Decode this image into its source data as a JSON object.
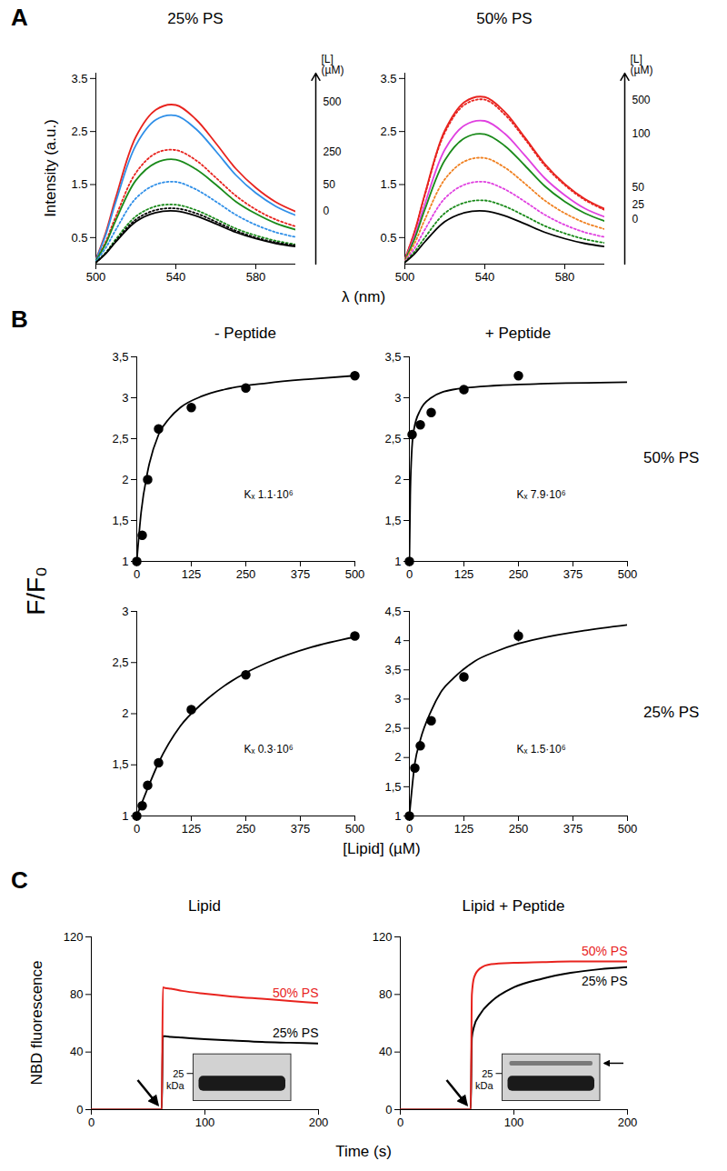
{
  "panels": [
    {
      "label": "A",
      "x_label": "λ (nm)",
      "y_label": "Intensity (a.u.)"
    },
    {
      "label": "B",
      "x_label": "[Lipid] (µM)",
      "y_label": "F/F₀",
      "column_labels": [
        "- Peptide",
        "+ Peptide"
      ],
      "row_labels": [
        "50% PS",
        "25% PS"
      ]
    },
    {
      "label": "C",
      "x_label": "Time (s)",
      "y_label": "NBD fluorescence"
    }
  ],
  "chart_data": [
    {
      "type": "line",
      "panel": "A",
      "title": "25% PS",
      "xlim": [
        500,
        600
      ],
      "xticks": [
        500,
        540,
        580
      ],
      "ylim": [
        0,
        3.6
      ],
      "yticks": [
        0.5,
        1.5,
        2.5,
        3.5
      ],
      "x": [
        500,
        505,
        510,
        520,
        530,
        540,
        550,
        560,
        570,
        580,
        590,
        600
      ],
      "series": [
        {
          "color": "#e8231e",
          "line_style": "solid",
          "values": [
            0.09,
            0.6,
            1.26,
            2.4,
            2.91,
            3.0,
            2.73,
            2.28,
            1.8,
            1.44,
            1.17,
            0.99
          ]
        },
        {
          "color": "#2f8fe8",
          "line_style": "solid",
          "values": [
            0.08,
            0.56,
            1.18,
            2.24,
            2.72,
            2.8,
            2.55,
            2.13,
            1.68,
            1.34,
            1.09,
            0.92
          ]
        },
        {
          "color": "#e8231e",
          "line_style": "dotted",
          "values": [
            0.06,
            0.43,
            0.9,
            1.72,
            2.09,
            2.15,
            1.96,
            1.63,
            1.29,
            1.03,
            0.84,
            0.71
          ]
        },
        {
          "color": "#1a8a1a",
          "line_style": "solid",
          "values": [
            0.06,
            0.39,
            0.83,
            1.58,
            1.91,
            1.97,
            1.79,
            1.5,
            1.18,
            0.95,
            0.77,
            0.65
          ]
        },
        {
          "color": "#2f8fe8",
          "line_style": "dotted",
          "values": [
            0.05,
            0.31,
            0.65,
            1.24,
            1.5,
            1.55,
            1.41,
            1.18,
            0.93,
            0.74,
            0.6,
            0.51
          ]
        },
        {
          "color": "#1a8a1a",
          "line_style": "dotted",
          "values": [
            0.03,
            0.22,
            0.47,
            0.9,
            1.09,
            1.12,
            1.02,
            0.85,
            0.67,
            0.54,
            0.44,
            0.37
          ]
        },
        {
          "color": "#000000",
          "line_style": "dotted",
          "values": [
            0.03,
            0.21,
            0.44,
            0.84,
            1.02,
            1.05,
            0.96,
            0.8,
            0.63,
            0.5,
            0.41,
            0.35
          ]
        },
        {
          "color": "#000000",
          "line_style": "solid",
          "values": [
            0.03,
            0.2,
            0.42,
            0.8,
            0.97,
            1.0,
            0.91,
            0.76,
            0.6,
            0.48,
            0.39,
            0.33
          ]
        }
      ],
      "l_axis": {
        "label": "[L]\n(µM)",
        "ticks": [
          {
            "value": 3.05,
            "label": "500"
          },
          {
            "value": 2.12,
            "label": "250"
          },
          {
            "value": 1.5,
            "label": "50"
          },
          {
            "value": 1.0,
            "label": "0"
          }
        ]
      }
    },
    {
      "type": "line",
      "panel": "A",
      "title": "50% PS",
      "xlim": [
        500,
        600
      ],
      "xticks": [
        500,
        540,
        580
      ],
      "ylim": [
        0,
        3.6
      ],
      "yticks": [
        0.5,
        1.5,
        2.5,
        3.5
      ],
      "x": [
        500,
        505,
        510,
        520,
        530,
        540,
        550,
        560,
        570,
        580,
        590,
        600
      ],
      "series": [
        {
          "color": "#e8231e",
          "line_style": "solid",
          "values": [
            0.09,
            0.63,
            1.32,
            2.52,
            3.06,
            3.15,
            2.87,
            2.39,
            1.89,
            1.51,
            1.23,
            1.04
          ]
        },
        {
          "color": "#e8231e",
          "line_style": "dotted",
          "values": [
            0.09,
            0.62,
            1.3,
            2.48,
            3.01,
            3.1,
            2.82,
            2.36,
            1.86,
            1.49,
            1.21,
            1.02
          ]
        },
        {
          "color": "#e040e0",
          "line_style": "solid",
          "values": [
            0.08,
            0.54,
            1.13,
            2.16,
            2.62,
            2.7,
            2.46,
            2.05,
            1.62,
            1.3,
            1.05,
            0.89
          ]
        },
        {
          "color": "#1a8a1a",
          "line_style": "solid",
          "values": [
            0.07,
            0.49,
            1.03,
            1.96,
            2.38,
            2.45,
            2.23,
            1.86,
            1.47,
            1.18,
            0.96,
            0.81
          ]
        },
        {
          "color": "#f08020",
          "line_style": "dotted",
          "values": [
            0.06,
            0.4,
            0.84,
            1.6,
            1.94,
            2.0,
            1.82,
            1.52,
            1.2,
            0.96,
            0.78,
            0.66
          ]
        },
        {
          "color": "#e040e0",
          "line_style": "dotted",
          "values": [
            0.05,
            0.31,
            0.65,
            1.24,
            1.5,
            1.55,
            1.41,
            1.18,
            0.93,
            0.74,
            0.6,
            0.51
          ]
        },
        {
          "color": "#1a8a1a",
          "line_style": "dotted",
          "values": [
            0.04,
            0.24,
            0.5,
            0.96,
            1.16,
            1.2,
            1.09,
            0.91,
            0.72,
            0.58,
            0.47,
            0.4
          ]
        },
        {
          "color": "#000000",
          "line_style": "solid",
          "values": [
            0.03,
            0.2,
            0.42,
            0.8,
            0.97,
            1.0,
            0.91,
            0.76,
            0.6,
            0.48,
            0.39,
            0.33
          ]
        }
      ],
      "l_axis": {
        "label": "[L]\n(µM)",
        "ticks": [
          {
            "value": 3.1,
            "label": "500"
          },
          {
            "value": 2.45,
            "label": "100"
          },
          {
            "value": 1.45,
            "label": "50"
          },
          {
            "value": 1.12,
            "label": "25"
          },
          {
            "value": 0.85,
            "label": "0"
          }
        ]
      }
    },
    {
      "type": "scatter",
      "panel": "B",
      "annotation": "Kₓ 1.1·10⁶",
      "xlim": [
        0,
        500
      ],
      "xticks": [
        0,
        125,
        250,
        375,
        500
      ],
      "ylim": [
        1,
        3.5
      ],
      "yticks": [
        1,
        {
          "value": 1.5,
          "label": "1,5"
        },
        2,
        {
          "value": 2.5,
          "label": "2,5"
        },
        3,
        {
          "value": 3.5,
          "label": "3,5"
        }
      ],
      "series": [
        {
          "type": "scatter",
          "color": "#000000",
          "marker": "circle",
          "x": [
            0,
            12.5,
            25,
            50,
            125,
            250,
            500
          ],
          "values": [
            1,
            1.32,
            2.0,
            2.62,
            2.88,
            3.12,
            3.27
          ],
          "errors": [
            null,
            null,
            null,
            null,
            null,
            null,
            null
          ]
        },
        {
          "type": "line",
          "color": "#000000",
          "line_style": "solid",
          "x": [
            0,
            10,
            25,
            50,
            75,
            100,
            150,
            200,
            300,
            400,
            500
          ],
          "values": [
            1,
            1.6,
            2.1,
            2.55,
            2.75,
            2.88,
            3.02,
            3.1,
            3.18,
            3.23,
            3.27
          ]
        }
      ]
    },
    {
      "type": "scatter",
      "panel": "B",
      "annotation": "Kₓ 7.9·10⁶",
      "xlim": [
        0,
        500
      ],
      "xticks": [
        0,
        125,
        250,
        375,
        500
      ],
      "ylim": [
        1,
        3.5
      ],
      "yticks": [
        1,
        {
          "value": 1.5,
          "label": "1,5"
        },
        2,
        {
          "value": 2.5,
          "label": "2,5"
        },
        3,
        {
          "value": 3.5,
          "label": "3,5"
        }
      ],
      "series": [
        {
          "type": "scatter",
          "color": "#000000",
          "marker": "circle",
          "x": [
            0,
            6.25,
            25,
            50,
            125,
            250
          ],
          "values": [
            1,
            2.55,
            2.67,
            2.82,
            3.1,
            3.27
          ],
          "errors": [
            null,
            null,
            null,
            null,
            null,
            0.05
          ]
        },
        {
          "type": "line",
          "color": "#000000",
          "line_style": "solid",
          "x": [
            0,
            2,
            5,
            10,
            25,
            50,
            100,
            200,
            300,
            500
          ],
          "values": [
            1,
            1.8,
            2.3,
            2.6,
            2.85,
            3.0,
            3.1,
            3.15,
            3.17,
            3.19
          ]
        }
      ]
    },
    {
      "type": "scatter",
      "panel": "B",
      "annotation": "Kₓ 0.3·10⁶",
      "xlim": [
        0,
        500
      ],
      "xticks": [
        0,
        125,
        250,
        375,
        500
      ],
      "ylim": [
        1,
        3
      ],
      "yticks": [
        1,
        {
          "value": 1.5,
          "label": "1,5"
        },
        2,
        {
          "value": 2.5,
          "label": "2,5"
        },
        3
      ],
      "series": [
        {
          "type": "scatter",
          "color": "#000000",
          "marker": "circle",
          "x": [
            0,
            12.5,
            25,
            50,
            125,
            250,
            500
          ],
          "values": [
            1,
            1.1,
            1.3,
            1.52,
            2.04,
            2.38,
            2.76
          ],
          "errors": [
            null,
            null,
            null,
            null,
            null,
            null,
            null
          ]
        },
        {
          "type": "line",
          "color": "#000000",
          "line_style": "solid",
          "x": [
            0,
            25,
            50,
            100,
            150,
            200,
            250,
            300,
            400,
            500
          ],
          "values": [
            1,
            1.27,
            1.52,
            1.88,
            2.1,
            2.27,
            2.4,
            2.5,
            2.65,
            2.75
          ]
        }
      ]
    },
    {
      "type": "scatter",
      "panel": "B",
      "annotation": "Kₓ 1.5·10⁶",
      "xlim": [
        0,
        500
      ],
      "xticks": [
        0,
        125,
        250,
        375,
        500
      ],
      "ylim": [
        1,
        4.5
      ],
      "yticks": [
        1,
        {
          "value": 1.5,
          "label": "1,5"
        },
        2,
        {
          "value": 2.5,
          "label": "2,5"
        },
        3,
        {
          "value": 3.5,
          "label": "3,5"
        },
        4,
        {
          "value": 4.5,
          "label": "4,5"
        }
      ],
      "series": [
        {
          "type": "scatter",
          "color": "#000000",
          "marker": "circle",
          "x": [
            0,
            12.5,
            25,
            50,
            125,
            250
          ],
          "values": [
            1,
            1.82,
            2.2,
            2.63,
            3.38,
            4.08
          ],
          "errors": [
            null,
            null,
            null,
            null,
            null,
            0.1
          ]
        },
        {
          "type": "line",
          "color": "#000000",
          "line_style": "solid",
          "x": [
            0,
            12.5,
            25,
            50,
            75,
            100,
            150,
            200,
            250,
            300,
            400,
            500
          ],
          "values": [
            1,
            1.9,
            2.3,
            2.8,
            3.15,
            3.35,
            3.65,
            3.82,
            3.95,
            4.04,
            4.17,
            4.27
          ]
        }
      ]
    },
    {
      "type": "line",
      "panel": "C",
      "title": "Lipid",
      "xlim": [
        0,
        200
      ],
      "xticks": [
        0,
        100,
        200
      ],
      "ylim": [
        0,
        120
      ],
      "yticks": [
        0,
        40,
        80,
        120
      ],
      "x": [
        0,
        62,
        63,
        65,
        70,
        80,
        100,
        125,
        150,
        175,
        200
      ],
      "series": [
        {
          "name": "50% PS",
          "color": "#e8231e",
          "values": [
            0,
            0,
            85,
            84.5,
            84,
            82.5,
            80.5,
            78.5,
            77,
            75.5,
            74
          ]
        },
        {
          "name": "25% PS",
          "color": "#000000",
          "values": [
            0,
            0,
            51,
            51,
            50.5,
            50,
            49,
            48,
            47,
            46.5,
            46
          ]
        }
      ],
      "inset": {
        "label": "25",
        "unit": "kDa",
        "bands": 1
      }
    },
    {
      "type": "line",
      "panel": "C",
      "title": "Lipid + Peptide",
      "xlim": [
        0,
        200
      ],
      "xticks": [
        0,
        100,
        200
      ],
      "ylim": [
        0,
        120
      ],
      "yticks": [
        0,
        40,
        80,
        120
      ],
      "x": [
        0,
        62,
        63,
        65,
        70,
        80,
        100,
        125,
        150,
        175,
        200
      ],
      "series": [
        {
          "name": "50% PS",
          "color": "#e8231e",
          "values": [
            0,
            0,
            80,
            92,
            98,
            101,
            102,
            102.5,
            103,
            103,
            103
          ]
        },
        {
          "name": "25% PS",
          "color": "#000000",
          "values": [
            0,
            0,
            50,
            58,
            66,
            75,
            85,
            91,
            95,
            97.5,
            99
          ]
        }
      ],
      "inset": {
        "label": "25",
        "unit": "kDa",
        "bands": 2
      }
    }
  ]
}
